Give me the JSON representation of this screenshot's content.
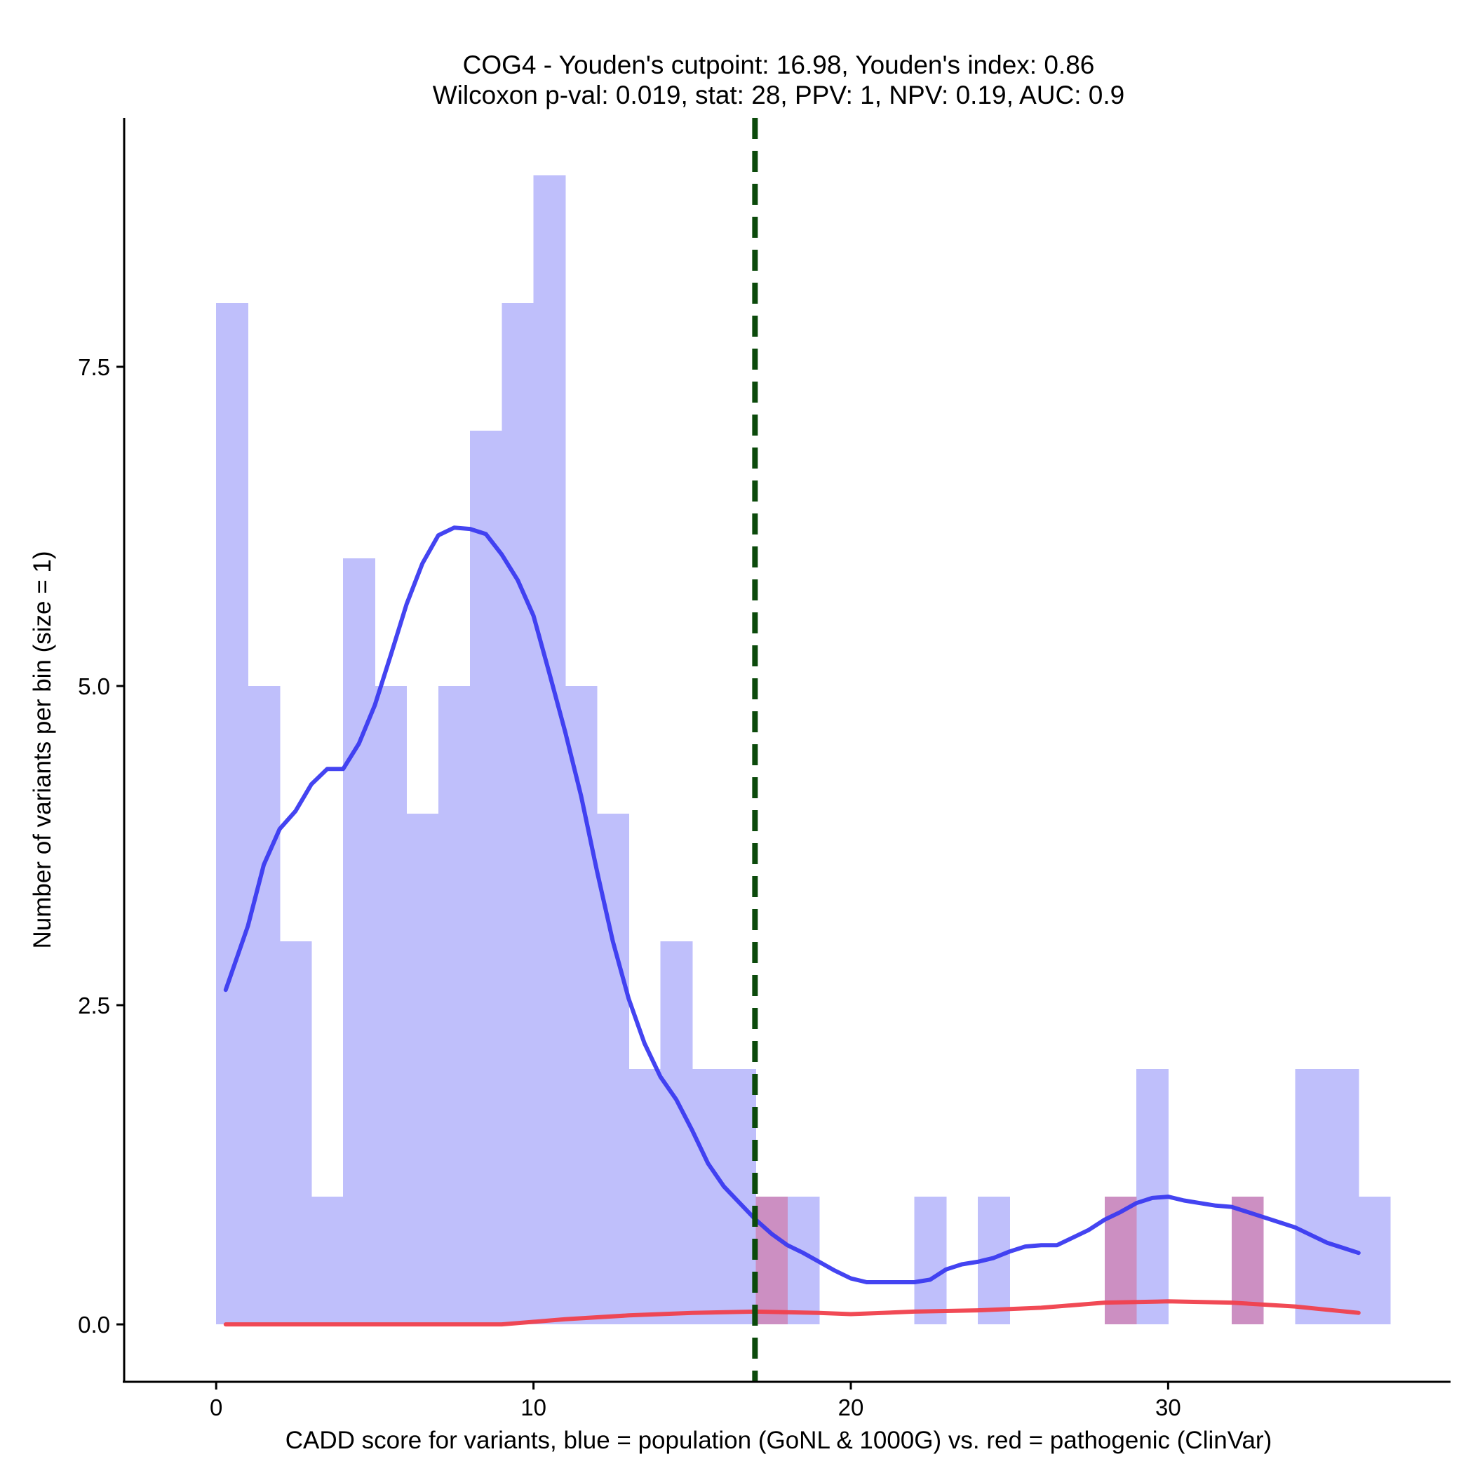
{
  "chart_data": {
    "type": "histogram",
    "title_line1": "COG4 - Youden's cutpoint: 16.98, Youden's index: 0.86",
    "title_line2": "Wilcoxon p-val: 0.019, stat: 28, PPV: 1, NPV: 0.19, AUC: 0.9",
    "xlabel": "CADD score for variants, blue = population (GoNL & 1000G) vs. red = pathogenic (ClinVar)",
    "ylabel": "Number of variants per bin (size = 1)",
    "xlim": [
      -2.9,
      38.9
    ],
    "ylim": [
      -0.45,
      9.45
    ],
    "x_ticks": [
      0,
      10,
      20,
      30
    ],
    "x_tick_labels": [
      "0",
      "10",
      "20",
      "30"
    ],
    "y_ticks": [
      0,
      2.5,
      5,
      7.5
    ],
    "y_tick_labels": [
      "0.0",
      "2.5",
      "5.0",
      "7.5"
    ],
    "bin_width": 1,
    "cutpoint": 16.98,
    "colors": {
      "population_bar": "#bfbffb",
      "pathogenic_bar": "#cc8fc2",
      "population_density": "#3a3af0",
      "pathogenic_density": "#f0404c",
      "cutpoint_line": "#0b4a0b"
    },
    "series": [
      {
        "name": "population",
        "bin_starts": [
          0,
          1,
          2,
          3,
          4,
          5,
          6,
          7,
          8,
          9,
          10,
          11,
          12,
          13,
          14,
          15,
          16,
          17,
          18,
          19,
          20,
          21,
          22,
          23,
          24,
          25,
          26,
          27,
          28,
          29,
          30,
          31,
          32,
          33,
          34,
          35,
          36
        ],
        "values": [
          8,
          5,
          3,
          1,
          6,
          5,
          4,
          5,
          7,
          8,
          9,
          5,
          4,
          2,
          3,
          2,
          2,
          1,
          1,
          0,
          0,
          0,
          1,
          0,
          1,
          0,
          0,
          0,
          1,
          2,
          0,
          0,
          1,
          0,
          2,
          2,
          1
        ]
      },
      {
        "name": "pathogenic",
        "bin_starts": [
          17,
          28,
          32
        ],
        "values": [
          1,
          1,
          1
        ]
      }
    ],
    "density_curves": [
      {
        "name": "population",
        "x": [
          0.3,
          1,
          1.5,
          2,
          2.5,
          3,
          3.5,
          4,
          4.5,
          5,
          5.5,
          6,
          6.5,
          7,
          7.5,
          8,
          8.5,
          9,
          9.5,
          10,
          10.5,
          11,
          11.5,
          12,
          12.5,
          13,
          13.5,
          14,
          14.5,
          15,
          15.5,
          16,
          16.5,
          17,
          17.5,
          18,
          18.5,
          19,
          19.5,
          20,
          20.5,
          21,
          21.5,
          22,
          22.5,
          23,
          23.5,
          24,
          24.5,
          25,
          25.5,
          26,
          26.5,
          27,
          27.5,
          28,
          28.5,
          29,
          29.5,
          30,
          30.5,
          31,
          31.5,
          32,
          32.5,
          33,
          33.5,
          34,
          34.5,
          35,
          35.5,
          36
        ],
        "y": [
          2.62,
          3.12,
          3.6,
          3.88,
          4.02,
          4.23,
          4.35,
          4.35,
          4.55,
          4.85,
          5.24,
          5.64,
          5.96,
          6.18,
          6.24,
          6.23,
          6.19,
          6.03,
          5.83,
          5.55,
          5.1,
          4.64,
          4.14,
          3.55,
          3.0,
          2.55,
          2.2,
          1.94,
          1.76,
          1.52,
          1.26,
          1.08,
          0.95,
          0.82,
          0.71,
          0.62,
          0.56,
          0.49,
          0.42,
          0.36,
          0.33,
          0.33,
          0.33,
          0.33,
          0.35,
          0.43,
          0.47,
          0.49,
          0.52,
          0.57,
          0.61,
          0.62,
          0.62,
          0.68,
          0.74,
          0.82,
          0.88,
          0.95,
          0.99,
          1.0,
          0.97,
          0.95,
          0.93,
          0.92,
          0.88,
          0.84,
          0.8,
          0.76,
          0.7,
          0.64,
          0.6,
          0.56
        ]
      },
      {
        "name": "pathogenic",
        "x": [
          0.3,
          3,
          6,
          9,
          11,
          13,
          15,
          17,
          19,
          20,
          22,
          24,
          26,
          28,
          30,
          32,
          34,
          36
        ],
        "y": [
          0.0,
          0.0,
          0.0,
          0.0,
          0.04,
          0.07,
          0.09,
          0.1,
          0.09,
          0.08,
          0.1,
          0.11,
          0.13,
          0.17,
          0.18,
          0.17,
          0.14,
          0.09
        ]
      }
    ]
  }
}
